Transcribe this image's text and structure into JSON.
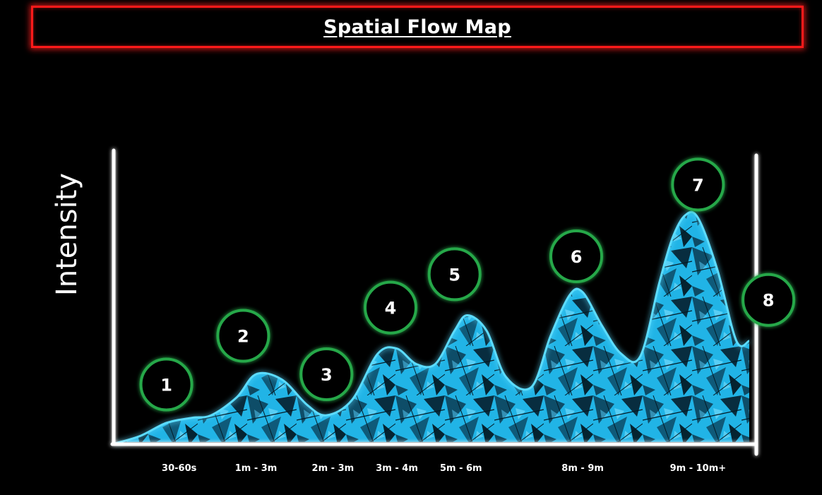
{
  "header": {
    "title": "Spatial Flow Map"
  },
  "chart_data": {
    "type": "area",
    "title": "Spatial Flow Map",
    "xlabel": "",
    "ylabel": "Intensity",
    "xlim": [
      0,
      100
    ],
    "ylim": [
      0,
      100
    ],
    "grid": false,
    "legend": "none",
    "ticks": [
      {
        "label": "30-60s",
        "x": 10
      },
      {
        "label": "1m - 3m",
        "x": 22
      },
      {
        "label": "2m - 3m",
        "x": 34
      },
      {
        "label": "3m - 4m",
        "x": 44
      },
      {
        "label": "5m - 6m",
        "x": 54
      },
      {
        "label": "8m - 9m",
        "x": 73
      },
      {
        "label": "9m - 10m+",
        "x": 91
      }
    ],
    "curve": {
      "x": [
        0,
        4,
        8,
        12,
        15,
        19,
        22,
        26,
        30,
        33,
        37,
        41,
        44,
        47,
        50,
        53,
        55,
        58,
        61,
        65,
        68,
        71,
        73,
        76,
        79,
        82,
        85,
        87,
        89,
        91,
        94,
        97,
        99
      ],
      "y": [
        0,
        3,
        8,
        10,
        11,
        18,
        27,
        25,
        15,
        11,
        17,
        35,
        37,
        31,
        31,
        44,
        50,
        44,
        26,
        22,
        42,
        58,
        59,
        46,
        35,
        34,
        63,
        80,
        89,
        88,
        68,
        40,
        40
      ]
    },
    "markers": [
      {
        "label": "1",
        "x": 8,
        "y": 23
      },
      {
        "label": "2",
        "x": 20,
        "y": 42
      },
      {
        "label": "3",
        "x": 33,
        "y": 27
      },
      {
        "label": "4",
        "x": 43,
        "y": 53
      },
      {
        "label": "5",
        "x": 53,
        "y": 66
      },
      {
        "label": "6",
        "x": 72,
        "y": 73
      },
      {
        "label": "7",
        "x": 91,
        "y": 101
      },
      {
        "label": "8",
        "x": 102,
        "y": 56
      }
    ],
    "colors": {
      "fill": "#21b4e6",
      "glow": "#4fd8ff",
      "marker_ring": "#25a84a",
      "axis": "#ffffff"
    }
  }
}
